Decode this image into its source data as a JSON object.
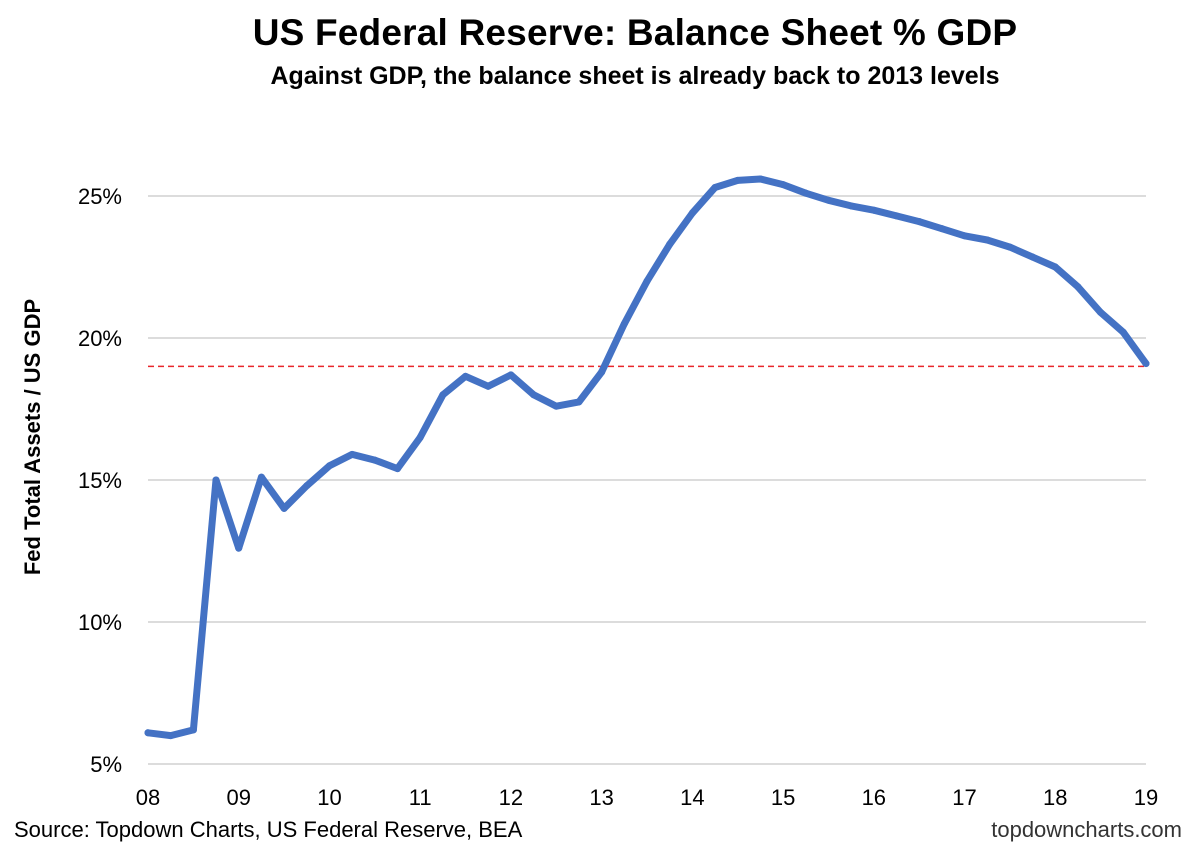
{
  "chart_data": {
    "type": "line",
    "title": "US Federal Reserve: Balance Sheet % GDP",
    "subtitle": "Against GDP, the balance sheet is already back to 2013 levels",
    "xlabel": "",
    "ylabel": "Fed Total Assets / US GDP",
    "x_tick_labels": [
      "08",
      "09",
      "10",
      "11",
      "12",
      "13",
      "14",
      "15",
      "16",
      "17",
      "18",
      "19"
    ],
    "y_tick_labels": [
      "5%",
      "10%",
      "15%",
      "20%",
      "25%"
    ],
    "y_ticks": [
      5,
      10,
      15,
      20,
      25
    ],
    "xlim": [
      2008,
      2019
    ],
    "ylim": [
      5,
      25
    ],
    "grid": true,
    "series": [
      {
        "name": "Fed Total Assets / US GDP",
        "color": "#4472C4",
        "x": [
          2008.0,
          2008.25,
          2008.5,
          2008.75,
          2009.0,
          2009.25,
          2009.5,
          2009.75,
          2010.0,
          2010.25,
          2010.5,
          2010.75,
          2011.0,
          2011.25,
          2011.5,
          2011.75,
          2012.0,
          2012.25,
          2012.5,
          2012.75,
          2013.0,
          2013.25,
          2013.5,
          2013.75,
          2014.0,
          2014.25,
          2014.5,
          2014.75,
          2015.0,
          2015.25,
          2015.5,
          2015.75,
          2016.0,
          2016.25,
          2016.5,
          2016.75,
          2017.0,
          2017.25,
          2017.5,
          2017.75,
          2018.0,
          2018.25,
          2018.5,
          2018.75,
          2019.0
        ],
        "values": [
          6.1,
          6.0,
          6.2,
          15.0,
          12.6,
          15.1,
          14.0,
          14.8,
          15.5,
          15.9,
          15.7,
          15.4,
          16.5,
          18.0,
          18.65,
          18.3,
          18.7,
          18.0,
          17.6,
          17.75,
          18.8,
          20.5,
          22.0,
          23.3,
          24.4,
          25.3,
          25.55,
          25.6,
          25.4,
          25.1,
          24.85,
          24.65,
          24.5,
          24.3,
          24.1,
          23.85,
          23.6,
          23.45,
          23.2,
          22.85,
          22.5,
          21.8,
          20.9,
          20.2,
          19.1
        ]
      }
    ],
    "reference_line": {
      "y": 19.0,
      "color": "#E8262B",
      "style": "dashed"
    },
    "source": "Source: Topdown Charts, US Federal Reserve, BEA",
    "watermark": "topdowncharts.com"
  }
}
